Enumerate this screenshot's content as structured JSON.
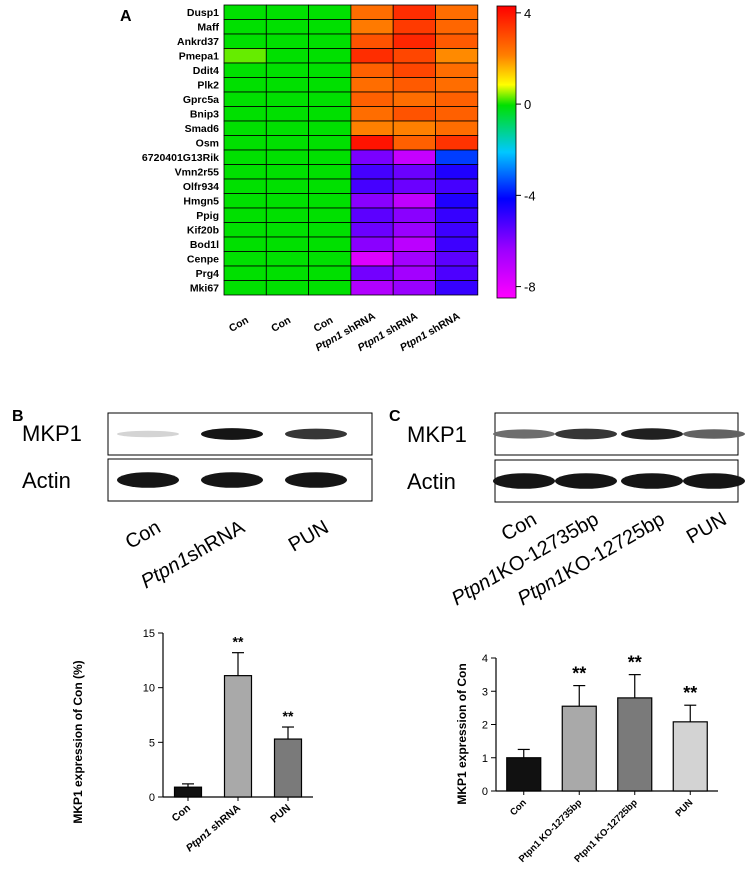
{
  "panels": {
    "a": "A",
    "b": "B",
    "c": "C"
  },
  "chart_data": [
    {
      "type": "heatmap",
      "panel": "A",
      "rows": [
        "Dusp1",
        "Maff",
        "Ankrd37",
        "Pmepa1",
        "Ddit4",
        "Plk2",
        "Gprc5a",
        "Bnip3",
        "Smad6",
        "Osm",
        "6720401G13Rik",
        "Vmn2r55",
        "Olfr934",
        "Hmgn5",
        "Ppig",
        "Kif20b",
        "Bod1l",
        "Cenpe",
        "Prg4",
        "Mki67"
      ],
      "columns": [
        {
          "italic": "",
          "text": "Con"
        },
        {
          "italic": "",
          "text": "Con"
        },
        {
          "italic": "",
          "text": "Con"
        },
        {
          "italic": "Ptpn1",
          "text": " shRNA"
        },
        {
          "italic": "Ptpn1",
          "text": " shRNA"
        },
        {
          "italic": "Ptpn1",
          "text": " shRNA"
        }
      ],
      "values": [
        [
          0,
          0,
          0,
          2.6,
          3.6,
          2.6
        ],
        [
          0,
          0,
          0,
          2.4,
          3.4,
          2.7
        ],
        [
          0,
          0,
          0,
          3.0,
          3.7,
          2.9
        ],
        [
          0.4,
          0,
          0,
          3.6,
          3.2,
          2.2
        ],
        [
          0,
          0,
          0,
          2.8,
          3.2,
          2.6
        ],
        [
          0,
          0,
          0,
          2.6,
          2.9,
          2.6
        ],
        [
          0,
          0,
          0,
          2.8,
          2.6,
          2.8
        ],
        [
          0,
          0,
          0,
          2.6,
          3.0,
          2.8
        ],
        [
          0,
          0,
          0,
          2.3,
          2.3,
          2.6
        ],
        [
          0,
          0,
          0,
          4.0,
          2.8,
          3.5
        ],
        [
          0,
          0,
          0,
          -6.0,
          -7.3,
          -3.7
        ],
        [
          0,
          0,
          0,
          -5.3,
          -5.8,
          -4.8
        ],
        [
          0,
          0,
          0,
          -5.3,
          -5.8,
          -5.3
        ],
        [
          0,
          0,
          0,
          -6.2,
          -7.2,
          -4.8
        ],
        [
          0,
          0,
          0,
          -5.6,
          -6.2,
          -5.1
        ],
        [
          0,
          0,
          0,
          -5.8,
          -6.4,
          -5.2
        ],
        [
          0,
          0,
          0,
          -6.2,
          -7.1,
          -5.2
        ],
        [
          0,
          0,
          0,
          -7.8,
          -6.6,
          -5.6
        ],
        [
          0,
          0,
          0,
          -5.9,
          -6.6,
          -5.4
        ],
        [
          0,
          0,
          0,
          -6.9,
          -6.4,
          -5.1
        ]
      ],
      "colorbar": {
        "ticks": [
          "4",
          "0",
          "-4",
          "-8"
        ],
        "range": [
          -8.5,
          4.3
        ]
      }
    },
    {
      "type": "bar",
      "panel": "B",
      "categories": [
        {
          "italic": "",
          "text": "Con"
        },
        {
          "italic": "Ptpn1",
          "text": " shRNA"
        },
        {
          "italic": "",
          "text": "PUN"
        }
      ],
      "values": [
        0.9,
        11.1,
        5.3
      ],
      "errors": [
        0.3,
        2.1,
        1.1
      ],
      "significance": [
        "",
        "**",
        "**"
      ],
      "colors": [
        "#111111",
        "#a9a9a9",
        "#7a7a7a"
      ],
      "ylabel": "MKP1 expression of Con (%)",
      "yticks": [
        0,
        5,
        10,
        15
      ],
      "ylim": [
        0,
        15
      ]
    },
    {
      "type": "bar",
      "panel": "C",
      "categories": [
        "Con",
        "Ptpn1 KO-12735bp",
        "Ptpn1 KO-12725bp",
        "PUN"
      ],
      "values": [
        1.0,
        2.55,
        2.8,
        2.08
      ],
      "errors": [
        0.25,
        0.62,
        0.7,
        0.5
      ],
      "significance": [
        "",
        "**",
        "**",
        "**"
      ],
      "colors": [
        "#111111",
        "#a9a9a9",
        "#7a7a7a",
        "#d3d3d3"
      ],
      "ylabel": "MKP1 expression of  Con",
      "yticks": [
        0,
        1,
        2,
        3,
        4
      ],
      "ylim": [
        0,
        4
      ]
    }
  ],
  "blots": {
    "b": {
      "rows": [
        "MKP1",
        "Actin"
      ],
      "lanes": [
        {
          "italic": "",
          "text": "Con"
        },
        {
          "italic": "Ptpn1",
          "text": "shRNA"
        },
        {
          "italic": "",
          "text": "PUN"
        }
      ],
      "band_intensity": {
        "MKP1": [
          0.08,
          0.95,
          0.8
        ],
        "Actin": [
          0.95,
          0.95,
          0.95
        ]
      }
    },
    "c": {
      "rows": [
        "MKP1",
        "Actin"
      ],
      "lanes": [
        {
          "italic": "",
          "text": "Con"
        },
        {
          "italic": "Ptpn1",
          "text": "KO-12735bp"
        },
        {
          "italic": "Ptpn1",
          "text": "KO-12725bp"
        },
        {
          "italic": "",
          "text": "PUN"
        }
      ],
      "band_intensity": {
        "MKP1": [
          0.55,
          0.8,
          0.9,
          0.6
        ],
        "Actin": [
          0.95,
          0.95,
          0.95,
          0.95
        ]
      }
    }
  }
}
